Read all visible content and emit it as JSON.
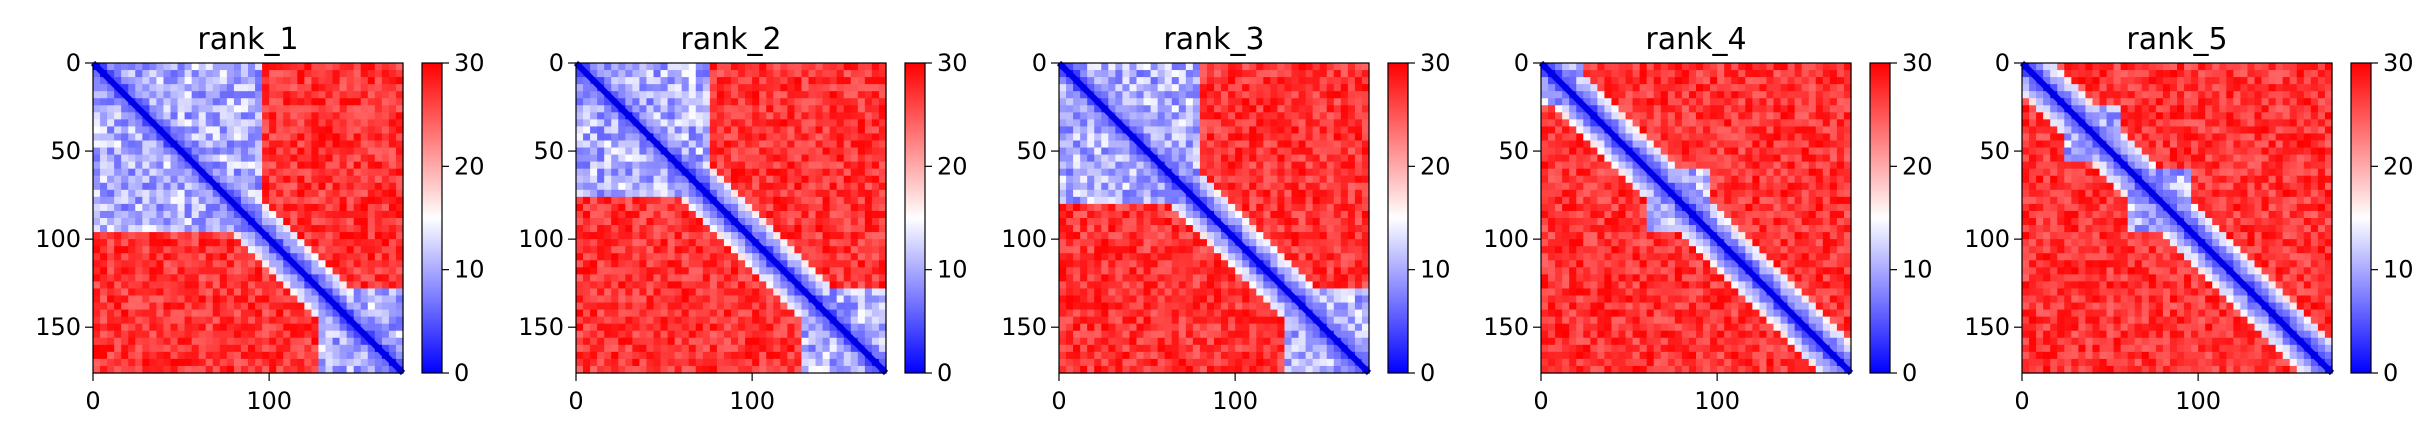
{
  "chart_data": [
    {
      "type": "heatmap",
      "title": "rank_1",
      "x_ticks": [
        "0",
        "100"
      ],
      "y_ticks": [
        "0",
        "50",
        "100",
        "150"
      ],
      "xlim": [
        0,
        176
      ],
      "ylim": [
        176,
        0
      ],
      "colorbar": {
        "ticks": [
          "0",
          "10",
          "20",
          "30"
        ],
        "range": [
          0,
          30
        ],
        "colormap": [
          "#0000ff",
          "#ffffff",
          "#ff0000"
        ]
      },
      "diagonal_band": true,
      "low_distance_blocks": [
        [
          0,
          95,
          0,
          95
        ],
        [
          130,
          176,
          130,
          176
        ]
      ]
    },
    {
      "type": "heatmap",
      "title": "rank_2",
      "x_ticks": [
        "0",
        "100"
      ],
      "y_ticks": [
        "0",
        "50",
        "100",
        "150"
      ],
      "xlim": [
        0,
        176
      ],
      "ylim": [
        176,
        0
      ],
      "colorbar": {
        "ticks": [
          "0",
          "10",
          "20",
          "30"
        ],
        "range": [
          0,
          30
        ],
        "colormap": [
          "#0000ff",
          "#ffffff",
          "#ff0000"
        ]
      },
      "diagonal_band": true,
      "low_distance_blocks": [
        [
          0,
          75,
          0,
          75
        ],
        [
          130,
          176,
          130,
          176
        ]
      ]
    },
    {
      "type": "heatmap",
      "title": "rank_3",
      "x_ticks": [
        "0",
        "100"
      ],
      "y_ticks": [
        "0",
        "50",
        "100",
        "150"
      ],
      "xlim": [
        0,
        176
      ],
      "ylim": [
        176,
        0
      ],
      "colorbar": {
        "ticks": [
          "0",
          "10",
          "20",
          "30"
        ],
        "range": [
          0,
          30
        ],
        "colormap": [
          "#0000ff",
          "#ffffff",
          "#ff0000"
        ]
      },
      "diagonal_band": true,
      "low_distance_blocks": [
        [
          0,
          80,
          0,
          80
        ],
        [
          130,
          176,
          130,
          176
        ]
      ]
    },
    {
      "type": "heatmap",
      "title": "rank_4",
      "x_ticks": [
        "0",
        "100"
      ],
      "y_ticks": [
        "0",
        "50",
        "100",
        "150"
      ],
      "xlim": [
        0,
        176
      ],
      "ylim": [
        176,
        0
      ],
      "colorbar": {
        "ticks": [
          "0",
          "10",
          "20",
          "30"
        ],
        "range": [
          0,
          30
        ],
        "colormap": [
          "#0000ff",
          "#ffffff",
          "#ff0000"
        ]
      },
      "diagonal_band": true,
      "low_distance_blocks": [
        [
          0,
          25,
          0,
          25
        ],
        [
          60,
          95,
          60,
          95
        ]
      ]
    },
    {
      "type": "heatmap",
      "title": "rank_5",
      "x_ticks": [
        "0",
        "100"
      ],
      "y_ticks": [
        "0",
        "50",
        "100",
        "150"
      ],
      "xlim": [
        0,
        176
      ],
      "ylim": [
        176,
        0
      ],
      "colorbar": {
        "ticks": [
          "0",
          "10",
          "20",
          "30"
        ],
        "range": [
          0,
          30
        ],
        "colormap": [
          "#0000ff",
          "#ffffff",
          "#ff0000"
        ]
      },
      "diagonal_band": true,
      "low_distance_blocks": [
        [
          25,
          55,
          25,
          55
        ],
        [
          60,
          95,
          60,
          95
        ]
      ]
    }
  ]
}
